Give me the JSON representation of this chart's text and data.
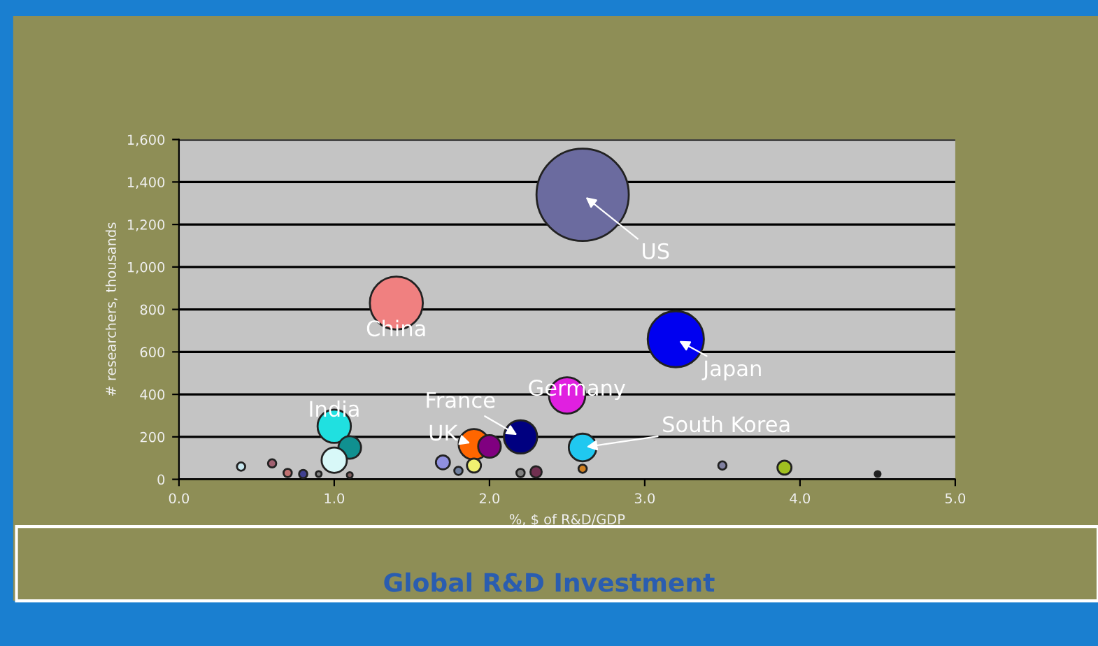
{
  "chart_data": {
    "type": "bubble",
    "title": "Global R&D Investment",
    "xlabel": "%, $ of R&D/GDP",
    "ylabel": "# researchers, thousands",
    "x": [
      2.6,
      1.4,
      3.2,
      2.5,
      1.0,
      2.2,
      1.9,
      2.0,
      2.6,
      1.1,
      1.0,
      0.4,
      0.6,
      0.7,
      0.8,
      0.9,
      1.1,
      1.7,
      1.8,
      1.9,
      2.2,
      2.3,
      2.6,
      3.5,
      3.9,
      4.5
    ],
    "values": [
      1340,
      830,
      660,
      395,
      250,
      200,
      165,
      155,
      150,
      150,
      90,
      60,
      75,
      30,
      25,
      25,
      20,
      80,
      40,
      65,
      30,
      35,
      50,
      65,
      55,
      25
    ],
    "sizes": [
      1,
      0.33,
      0.37,
      0.155,
      0.13,
      0.13,
      0.11,
      0.06,
      0.09,
      0.06,
      0.075,
      0.008,
      0.008,
      0.008,
      0.008,
      0.004,
      0.004,
      0.023,
      0.008,
      0.023,
      0.008,
      0.015,
      0.008,
      0.008,
      0.023,
      0.004
    ],
    "colors": [
      "#6b6b9f",
      "#f08080",
      "#0000f0",
      "#e020e0",
      "#20e0e0",
      "#000080",
      "#ff6600",
      "#800080",
      "#20c8f0",
      "#109090",
      "#d8f8f8",
      "#c8e8f0",
      "#a06070",
      "#c07070",
      "#404090",
      "#808080",
      "#806060",
      "#9090e0",
      "#7080a0",
      "#f0f070",
      "#808080",
      "#703050",
      "#d08020",
      "#8080a0",
      "#a0c020",
      "#202020"
    ],
    "annotations": [
      {
        "text": "US",
        "x": 2.6,
        "y": 1340
      },
      {
        "text": "China",
        "x": 1.4,
        "y": 830
      },
      {
        "text": "Japan",
        "x": 3.2,
        "y": 660
      },
      {
        "text": "Germany",
        "x": 2.5,
        "y": 395
      },
      {
        "text": "India",
        "x": 1.0,
        "y": 250
      },
      {
        "text": "France",
        "x": 2.2,
        "y": 200
      },
      {
        "text": "UK",
        "x": 1.9,
        "y": 165
      },
      {
        "text": "South Korea",
        "x": 2.6,
        "y": 150
      }
    ],
    "xlim": [
      0,
      5
    ],
    "xticks": [
      {
        "value": 0,
        "label": "0.0"
      },
      {
        "value": 1,
        "label": "1.0"
      },
      {
        "value": 2,
        "label": "2.0"
      },
      {
        "value": 3,
        "label": "3.0"
      },
      {
        "value": 4,
        "label": "4.0"
      },
      {
        "value": 5,
        "label": "5.0"
      }
    ],
    "ylim": [
      0,
      1600
    ],
    "yticks": [
      0,
      200,
      400,
      600,
      800,
      {
        "value": 1000,
        "label": "1,000"
      },
      {
        "value": 1200,
        "label": "1,200"
      },
      {
        "value": 1400,
        "label": "1,400"
      },
      {
        "value": 1600,
        "label": "1,600"
      }
    ],
    "grid": "y"
  }
}
